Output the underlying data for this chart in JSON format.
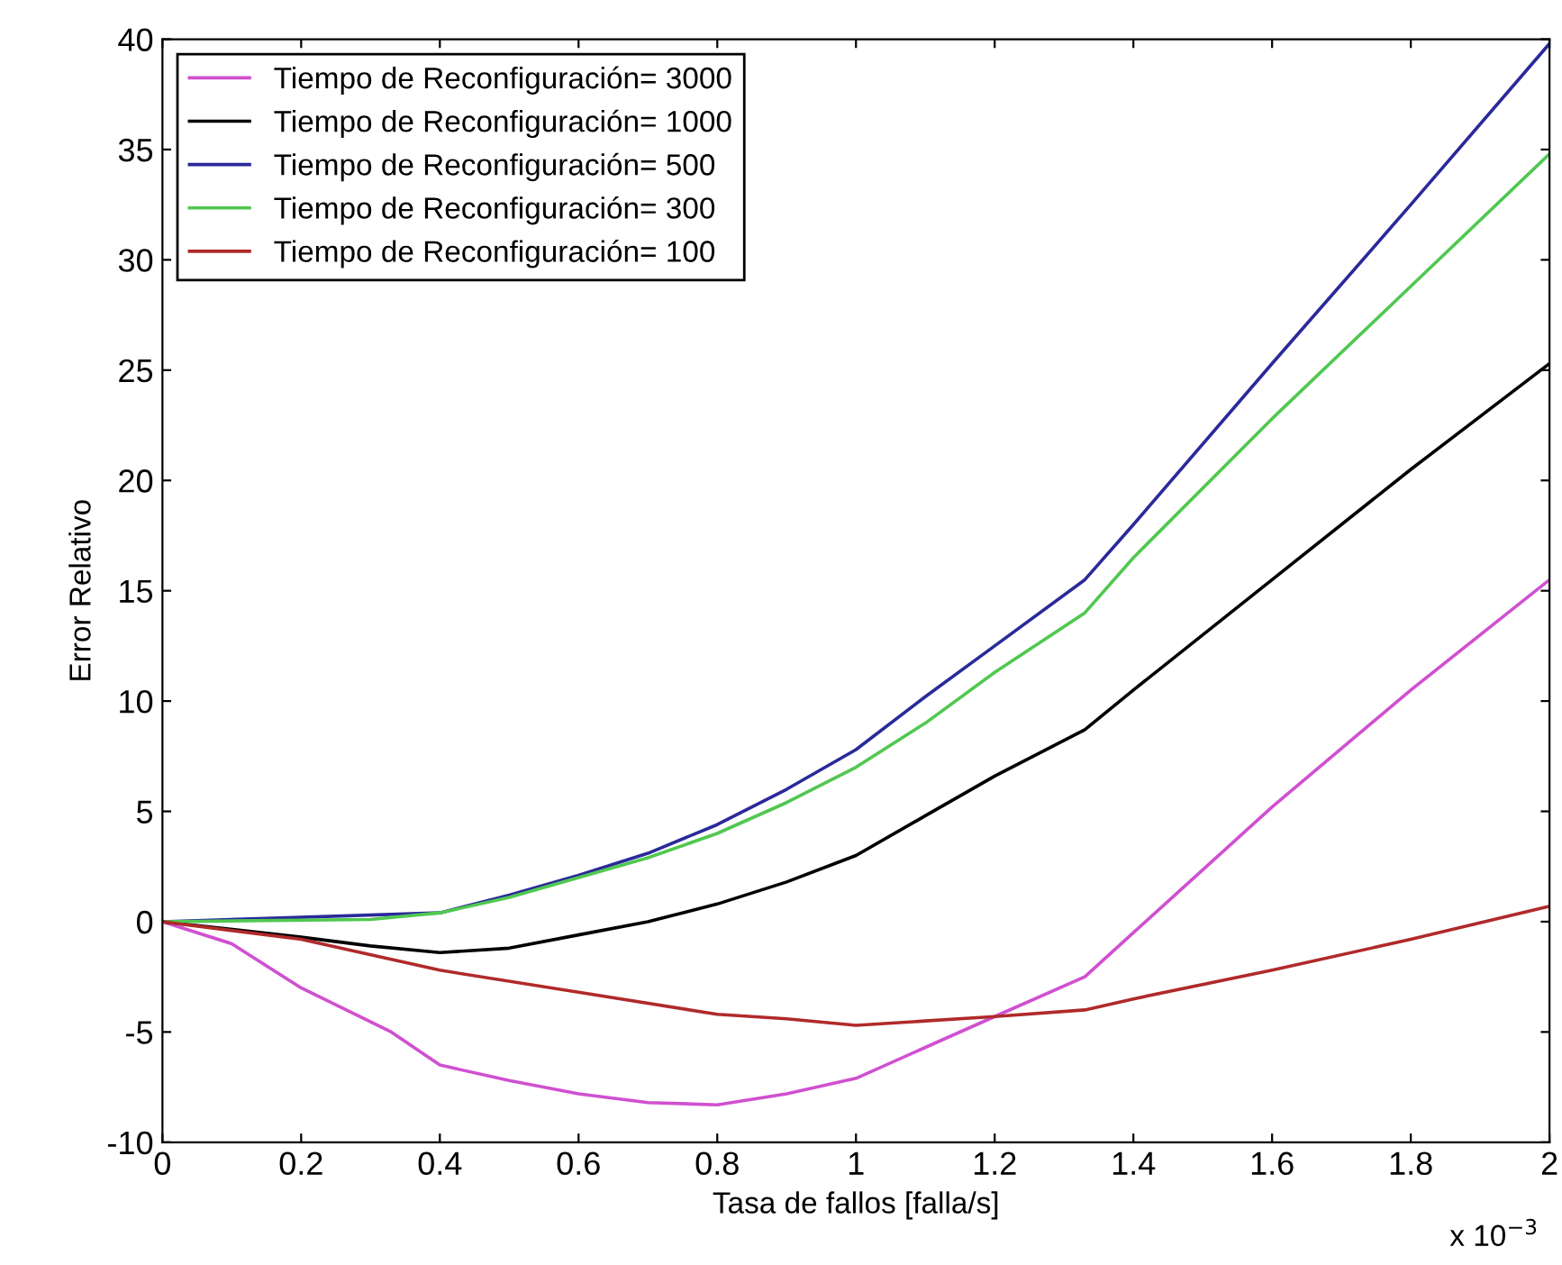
{
  "chart_data": {
    "type": "line",
    "xlabel": "Tasa de fallos [falla/s]",
    "ylabel": "Error Relativo",
    "annotations": [
      "x 10$^{−3}$"
    ],
    "xlim": [
      0,
      2
    ],
    "xticks": [
      0,
      0.2,
      0.4,
      0.6,
      0.8,
      1,
      1.2,
      1.4,
      1.6,
      1.8,
      2
    ],
    "ylim": [
      -10,
      40
    ],
    "yticks": [
      -10,
      -5,
      0,
      5,
      10,
      15,
      20,
      25,
      30,
      35,
      40
    ],
    "grid": false,
    "legend": "top left",
    "line_style": "solid",
    "marker": "none",
    "series": [
      {
        "name": "Tiempo de Reconfiguración= 3000",
        "color": "#d050d0",
        "x": [
          0,
          0.1,
          0.2,
          0.33,
          0.4,
          0.5,
          0.6,
          0.7,
          0.8,
          0.9,
          1.0,
          1.1,
          1.2,
          1.33,
          1.4,
          1.6,
          1.8,
          2.0
        ],
        "values": [
          0,
          -1,
          -3,
          -5,
          -6.5,
          -7.2,
          -7.8,
          -8.2,
          -8.3,
          -7.8,
          -7.1,
          -5.7,
          -4.3,
          -2.5,
          -0.5,
          5.2,
          10.5,
          15.5
        ]
      },
      {
        "name": "Tiempo de Reconfiguración= 1000",
        "color": "#000000",
        "x": [
          0,
          0.2,
          0.3,
          0.4,
          0.5,
          0.6,
          0.7,
          0.8,
          0.9,
          1.0,
          1.1,
          1.2,
          1.33,
          1.4,
          1.6,
          1.8,
          2.0
        ],
        "values": [
          0,
          -0.7,
          -1.1,
          -1.4,
          -1.2,
          -0.6,
          0,
          0.8,
          1.8,
          3,
          4.8,
          6.6,
          8.7,
          10.5,
          15.5,
          20.5,
          25.3
        ]
      },
      {
        "name": "Tiempo de Reconfiguración= 500",
        "color": "#2a2a9a",
        "x": [
          0,
          0.4,
          0.5,
          0.6,
          0.7,
          0.8,
          0.9,
          1.0,
          1.1,
          1.2,
          1.33,
          1.4,
          1.6,
          1.8,
          2.0
        ],
        "values": [
          0,
          0.4,
          1.2,
          2.1,
          3.1,
          4.4,
          6,
          7.8,
          10.2,
          12.5,
          15.5,
          18,
          25.3,
          32.5,
          39.8
        ]
      },
      {
        "name": "Tiempo de Reconfiguración= 300",
        "color": "#50c850",
        "x": [
          0,
          0.3,
          0.4,
          0.5,
          0.6,
          0.7,
          0.8,
          0.9,
          1.0,
          1.1,
          1.2,
          1.33,
          1.4,
          1.6,
          1.8,
          2.0
        ],
        "values": [
          0,
          0.1,
          0.4,
          1.1,
          2,
          2.9,
          4,
          5.4,
          7,
          9,
          11.3,
          14,
          16.5,
          22.8,
          28.8,
          34.8
        ]
      },
      {
        "name": "Tiempo de Reconfiguración= 100",
        "color": "#b02a2a",
        "x": [
          0,
          0.2,
          0.4,
          0.6,
          0.8,
          0.9,
          1.0,
          1.1,
          1.2,
          1.33,
          1.4,
          1.6,
          1.8,
          2.0
        ],
        "values": [
          0,
          -0.8,
          -2.2,
          -3.2,
          -4.2,
          -4.4,
          -4.7,
          -4.5,
          -4.3,
          -4.0,
          -3.5,
          -2.2,
          -0.8,
          0.7
        ]
      }
    ]
  }
}
